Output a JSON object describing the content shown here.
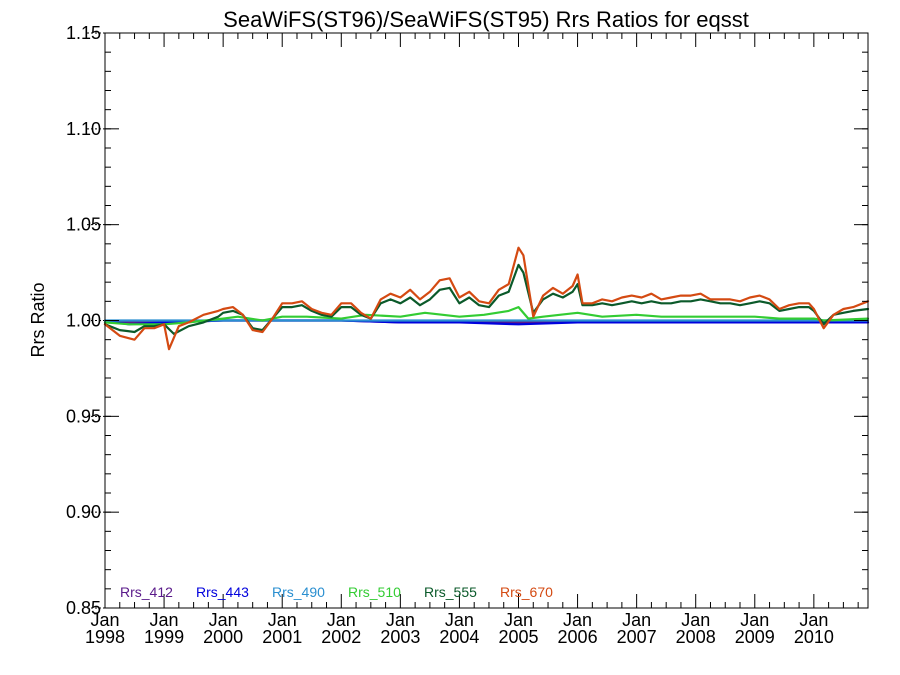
{
  "chart_data": {
    "type": "line",
    "title": "SeaWiFS(ST96)/SeaWiFS(ST95)  Rrs Ratios for eqsst",
    "ylabel": "Rrs Ratio",
    "xlabel": "",
    "ylim": [
      0.85,
      1.15
    ],
    "y_ticks": [
      "0.85",
      "0.90",
      "0.95",
      "1.00",
      "1.05",
      "1.10",
      "1.15"
    ],
    "xlim": [
      "1998-01",
      "2010-12"
    ],
    "x_ticks": [
      {
        "month": "Jan",
        "year": "1998"
      },
      {
        "month": "Jan",
        "year": "1999"
      },
      {
        "month": "Jan",
        "year": "2000"
      },
      {
        "month": "Jan",
        "year": "2001"
      },
      {
        "month": "Jan",
        "year": "2002"
      },
      {
        "month": "Jan",
        "year": "2003"
      },
      {
        "month": "Jan",
        "year": "2004"
      },
      {
        "month": "Jan",
        "year": "2005"
      },
      {
        "month": "Jan",
        "year": "2006"
      },
      {
        "month": "Jan",
        "year": "2007"
      },
      {
        "month": "Jan",
        "year": "2008"
      },
      {
        "month": "Jan",
        "year": "2009"
      },
      {
        "month": "Jan",
        "year": "2010"
      }
    ],
    "reference_line": 1.0,
    "legend_position": "bottom-left",
    "series": [
      {
        "name": "Rrs_412",
        "color": "#5a1a8a",
        "x": [
          "1998-01",
          "1999-01",
          "2000-01",
          "2001-01",
          "2002-01",
          "2003-01",
          "2004-01",
          "2005-01",
          "2006-01",
          "2007-01",
          "2008-01",
          "2009-01",
          "2010-01",
          "2010-12"
        ],
        "values": [
          0.999,
          0.999,
          1.0,
          1.0,
          1.0,
          0.999,
          0.999,
          0.999,
          0.999,
          0.999,
          0.999,
          0.999,
          0.999,
          0.999
        ]
      },
      {
        "name": "Rrs_443",
        "color": "#0000dd",
        "x": [
          "1998-01",
          "1998-03",
          "1998-06",
          "1999-01",
          "2000-01",
          "2001-01",
          "2002-01",
          "2003-01",
          "2004-01",
          "2005-01",
          "2006-01",
          "2007-01",
          "2008-01",
          "2009-01",
          "2010-01",
          "2010-12"
        ],
        "values": [
          0.999,
          0.999,
          0.998,
          0.999,
          1.0,
          1.0,
          1.0,
          0.999,
          0.999,
          0.998,
          0.999,
          0.999,
          0.999,
          0.999,
          0.999,
          0.999
        ]
      },
      {
        "name": "Rrs_490",
        "color": "#2a8fd0",
        "x": [
          "1998-01",
          "1999-01",
          "2000-01",
          "2001-01",
          "2002-01",
          "2003-01",
          "2004-01",
          "2005-01",
          "2006-01",
          "2007-01",
          "2008-01",
          "2009-01",
          "2010-01",
          "2010-12"
        ],
        "values": [
          1.0,
          1.0,
          1.0,
          1.0,
          1.0,
          1.0,
          1.0,
          1.0,
          1.0,
          1.0,
          1.0,
          1.0,
          1.0,
          1.0
        ]
      },
      {
        "name": "Rrs_510",
        "color": "#33cc33",
        "x": [
          "1998-01",
          "1998-06",
          "1999-01",
          "1999-06",
          "2000-01",
          "2000-04",
          "2000-09",
          "2001-01",
          "2001-06",
          "2002-01",
          "2002-06",
          "2003-01",
          "2003-06",
          "2004-01",
          "2004-06",
          "2004-11",
          "2005-01",
          "2005-03",
          "2005-06",
          "2006-01",
          "2006-06",
          "2007-01",
          "2007-06",
          "2008-01",
          "2008-06",
          "2009-01",
          "2009-06",
          "2010-01",
          "2010-03",
          "2010-12"
        ],
        "values": [
          0.999,
          0.998,
          0.998,
          0.999,
          1.001,
          1.002,
          1.0,
          1.002,
          1.002,
          1.001,
          1.003,
          1.002,
          1.004,
          1.002,
          1.003,
          1.005,
          1.007,
          1.001,
          1.002,
          1.004,
          1.002,
          1.003,
          1.002,
          1.002,
          1.002,
          1.002,
          1.001,
          1.001,
          1.0,
          1.001
        ]
      },
      {
        "name": "Rrs_555",
        "color": "#0b5a2a",
        "x": [
          "1998-01",
          "1998-04",
          "1998-07",
          "1998-09",
          "1998-11",
          "1999-01",
          "1999-03",
          "1999-06",
          "1999-09",
          "1999-12",
          "2000-01",
          "2000-03",
          "2000-05",
          "2000-07",
          "2000-09",
          "2000-11",
          "2001-01",
          "2001-03",
          "2001-05",
          "2001-07",
          "2001-09",
          "2001-11",
          "2002-01",
          "2002-03",
          "2002-05",
          "2002-07",
          "2002-09",
          "2002-11",
          "2003-01",
          "2003-03",
          "2003-05",
          "2003-07",
          "2003-09",
          "2003-11",
          "2004-01",
          "2004-03",
          "2004-05",
          "2004-07",
          "2004-09",
          "2004-11",
          "2005-01",
          "2005-02",
          "2005-04",
          "2005-06",
          "2005-08",
          "2005-10",
          "2005-12",
          "2006-01",
          "2006-02",
          "2006-04",
          "2006-06",
          "2006-08",
          "2006-10",
          "2006-12",
          "2007-02",
          "2007-04",
          "2007-06",
          "2007-08",
          "2007-10",
          "2007-12",
          "2008-02",
          "2008-04",
          "2008-06",
          "2008-08",
          "2008-10",
          "2008-12",
          "2009-02",
          "2009-04",
          "2009-06",
          "2009-08",
          "2009-10",
          "2009-12",
          "2010-01",
          "2010-03",
          "2010-05",
          "2010-07",
          "2010-09",
          "2010-12"
        ],
        "values": [
          0.998,
          0.995,
          0.994,
          0.997,
          0.997,
          0.998,
          0.993,
          0.997,
          0.999,
          1.002,
          1.004,
          1.005,
          1.003,
          0.996,
          0.995,
          1.001,
          1.007,
          1.007,
          1.008,
          1.005,
          1.003,
          1.002,
          1.007,
          1.007,
          1.003,
          1.001,
          1.009,
          1.011,
          1.009,
          1.012,
          1.008,
          1.011,
          1.016,
          1.017,
          1.009,
          1.012,
          1.008,
          1.007,
          1.013,
          1.015,
          1.029,
          1.025,
          1.004,
          1.011,
          1.014,
          1.012,
          1.015,
          1.019,
          1.008,
          1.008,
          1.009,
          1.008,
          1.009,
          1.01,
          1.009,
          1.01,
          1.009,
          1.009,
          1.01,
          1.01,
          1.011,
          1.01,
          1.009,
          1.009,
          1.008,
          1.009,
          1.01,
          1.009,
          1.005,
          1.006,
          1.007,
          1.007,
          1.005,
          0.998,
          1.003,
          1.004,
          1.005,
          1.006
        ]
      },
      {
        "name": "Rrs_670",
        "color": "#d44a12",
        "x": [
          "1998-01",
          "1998-04",
          "1998-07",
          "1998-09",
          "1998-11",
          "1999-01",
          "1999-02",
          "1999-04",
          "1999-06",
          "1999-09",
          "1999-12",
          "2000-01",
          "2000-03",
          "2000-05",
          "2000-07",
          "2000-09",
          "2000-11",
          "2001-01",
          "2001-03",
          "2001-05",
          "2001-07",
          "2001-09",
          "2001-11",
          "2002-01",
          "2002-03",
          "2002-05",
          "2002-07",
          "2002-09",
          "2002-11",
          "2003-01",
          "2003-03",
          "2003-05",
          "2003-07",
          "2003-09",
          "2003-11",
          "2004-01",
          "2004-03",
          "2004-05",
          "2004-07",
          "2004-09",
          "2004-11",
          "2005-01",
          "2005-02",
          "2005-04",
          "2005-06",
          "2005-08",
          "2005-10",
          "2005-12",
          "2006-01",
          "2006-02",
          "2006-04",
          "2006-06",
          "2006-08",
          "2006-10",
          "2006-12",
          "2007-02",
          "2007-04",
          "2007-06",
          "2007-08",
          "2007-10",
          "2007-12",
          "2008-02",
          "2008-04",
          "2008-06",
          "2008-08",
          "2008-10",
          "2008-12",
          "2009-02",
          "2009-04",
          "2009-06",
          "2009-08",
          "2009-10",
          "2009-12",
          "2010-01",
          "2010-03",
          "2010-05",
          "2010-07",
          "2010-09",
          "2010-12"
        ],
        "values": [
          0.998,
          0.992,
          0.99,
          0.996,
          0.996,
          0.998,
          0.985,
          0.997,
          0.999,
          1.003,
          1.005,
          1.006,
          1.007,
          1.003,
          0.995,
          0.994,
          1.001,
          1.009,
          1.009,
          1.01,
          1.006,
          1.004,
          1.003,
          1.009,
          1.009,
          1.004,
          1.001,
          1.011,
          1.014,
          1.012,
          1.016,
          1.011,
          1.015,
          1.021,
          1.022,
          1.012,
          1.015,
          1.01,
          1.009,
          1.016,
          1.019,
          1.038,
          1.034,
          1.002,
          1.013,
          1.017,
          1.014,
          1.018,
          1.024,
          1.009,
          1.009,
          1.011,
          1.01,
          1.012,
          1.013,
          1.012,
          1.014,
          1.011,
          1.012,
          1.013,
          1.013,
          1.014,
          1.011,
          1.011,
          1.011,
          1.01,
          1.012,
          1.013,
          1.011,
          1.006,
          1.008,
          1.009,
          1.009,
          1.006,
          0.996,
          1.003,
          1.006,
          1.007,
          1.01
        ]
      }
    ]
  }
}
